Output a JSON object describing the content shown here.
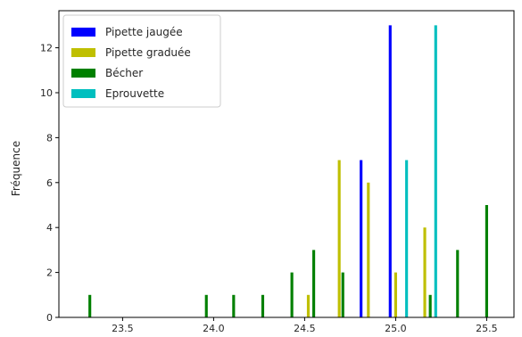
{
  "chart_data": {
    "type": "bar",
    "title": "",
    "xlabel": "",
    "ylabel": "Fréquence",
    "xlim": [
      23.15,
      25.65
    ],
    "ylim": [
      0,
      13.65
    ],
    "xticks": [
      23.5,
      24.0,
      24.5,
      25.0,
      25.5
    ],
    "xtick_labels": [
      "23.5",
      "24.0",
      "24.5",
      "25.0",
      "25.5"
    ],
    "yticks": [
      0,
      2,
      4,
      6,
      8,
      10,
      12
    ],
    "ytick_labels": [
      "0",
      "2",
      "4",
      "6",
      "8",
      "10",
      "12"
    ],
    "grid": false,
    "legend_position": "upper-left",
    "bar_width": 0.0154,
    "series": [
      {
        "name": "Pipette jaugée",
        "color": "#0000ff",
        "bars": [
          [
            24.81,
            7
          ],
          [
            24.97,
            13
          ]
        ]
      },
      {
        "name": "Pipette graduée",
        "color": "#bfbf00",
        "bars": [
          [
            24.52,
            1
          ],
          [
            24.69,
            7
          ],
          [
            24.85,
            6
          ],
          [
            25.0,
            2
          ],
          [
            25.16,
            4
          ]
        ]
      },
      {
        "name": "Bécher",
        "color": "#008000",
        "bars": [
          [
            23.32,
            1
          ],
          [
            23.96,
            1
          ],
          [
            24.11,
            1
          ],
          [
            24.27,
            1
          ],
          [
            24.43,
            2
          ],
          [
            24.55,
            3
          ],
          [
            24.71,
            2
          ],
          [
            25.19,
            1
          ],
          [
            25.34,
            3
          ],
          [
            25.5,
            5
          ]
        ]
      },
      {
        "name": "Eprouvette",
        "color": "#00bfbf",
        "bars": [
          [
            25.06,
            7
          ],
          [
            25.22,
            13
          ]
        ]
      }
    ]
  }
}
